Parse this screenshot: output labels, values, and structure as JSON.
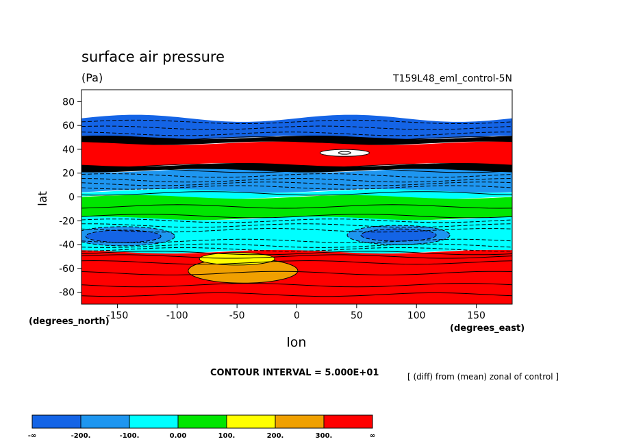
{
  "chart_data": {
    "type": "heatmap",
    "title": "surface air pressure",
    "units": "(Pa)",
    "experiment": "T159L48_eml_control-5N",
    "ylabel": "lat",
    "xlabel": "lon",
    "y_unit_label": "(degrees_north)",
    "x_unit_label": "(degrees_east)",
    "xlim": [
      -180,
      180
    ],
    "ylim": [
      -90,
      90
    ],
    "x_ticks": [
      -150,
      -100,
      -50,
      0,
      50,
      100,
      150
    ],
    "y_ticks": [
      80,
      60,
      40,
      20,
      0,
      -20,
      -40,
      -60,
      -80
    ],
    "contour_interval_text": "CONTOUR INTERVAL = 5.000E+01",
    "note": "[ (diff) from (mean) zonal of control ]",
    "colorbar": {
      "labels": [
        "-∞",
        "-200.",
        "-100.",
        "0.00",
        "100.",
        "200.",
        "300.",
        "∞"
      ],
      "colors": [
        "#1464e6",
        "#1e96f0",
        "#00ffff",
        "#00e600",
        "#ffff00",
        "#f0a000",
        "#ff0000"
      ]
    },
    "bands": [
      {
        "lat_top": 66,
        "lat_bottom": 50,
        "color": "#1464e6",
        "note": "blue, < -200"
      },
      {
        "lat_top": 50,
        "lat_bottom": 45,
        "color": "#000000",
        "note": "dense contours"
      },
      {
        "lat_top": 45,
        "lat_bottom": 27,
        "color": "#ff0000",
        "note": "red, > 300"
      },
      {
        "lat_top": 27,
        "lat_bottom": 22,
        "color": "#000000",
        "note": "dense contours"
      },
      {
        "lat_top": 22,
        "lat_bottom": 5,
        "color": "#1e96f0",
        "note": "light blue"
      },
      {
        "lat_top": 5,
        "lat_bottom": 0,
        "color": "#00ffff",
        "note": "cyan"
      },
      {
        "lat_top": 0,
        "lat_bottom": -18,
        "color": "#00e600",
        "note": "green"
      },
      {
        "lat_top": -18,
        "lat_bottom": -46,
        "color": "#00ffff",
        "note": "cyan"
      },
      {
        "lat_top": -46,
        "lat_bottom": -90,
        "color": "#ff0000",
        "note": "red"
      }
    ],
    "features": [
      {
        "type": "white-lens",
        "lon": 40,
        "lat": 37
      },
      {
        "type": "blue-lens",
        "lon": -145,
        "lat": -33
      },
      {
        "type": "blue-lens",
        "lon": 85,
        "lat": -32
      },
      {
        "type": "orange-tongue",
        "lon": -45,
        "lat": -62
      },
      {
        "type": "yellow-tongue",
        "lon": -50,
        "lat": -52
      }
    ]
  }
}
